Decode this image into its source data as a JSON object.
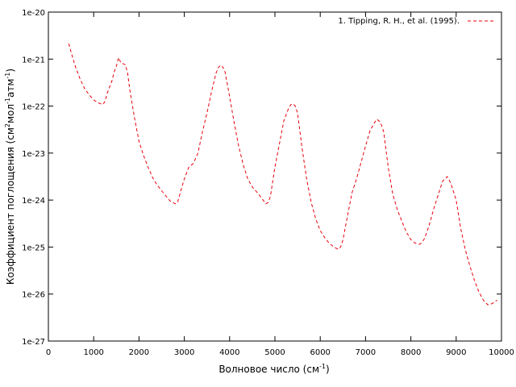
{
  "chart_data": {
    "type": "line",
    "xlabel": "Волновое число (см",
    "xlabel_sup": "-1",
    "xlabel_end": ")",
    "ylabel_parts": [
      "Коэффициент поглощения (см",
      "2",
      "мол",
      "-1",
      "атм",
      "-1",
      ")"
    ],
    "xlim": [
      0,
      10000
    ],
    "ylim_exp": [
      -27,
      -20
    ],
    "yscale": "log",
    "grid": false,
    "legend_position": "top-right",
    "x_ticks": [
      0,
      1000,
      2000,
      3000,
      4000,
      5000,
      6000,
      7000,
      8000,
      9000,
      10000
    ],
    "x_tick_labels": [
      "0",
      "1000",
      "2000",
      "3000",
      "4000",
      "5000",
      "6000",
      "7000",
      "8000",
      "9000",
      "10000"
    ],
    "y_ticks_exp": [
      -20,
      -21,
      -22,
      -23,
      -24,
      -25,
      -26,
      -27
    ],
    "y_tick_labels": [
      "1e-20",
      "1e-21",
      "1e-22",
      "1e-23",
      "1e-24",
      "1e-25",
      "1e-26",
      "1e-27"
    ],
    "series": [
      {
        "name": "1. Tipping, R. H., et al. (1995).",
        "color": "#e8000b",
        "dash": "dashed",
        "x": [
          450,
          500,
          600,
          700,
          800,
          900,
          1000,
          1100,
          1200,
          1250,
          1300,
          1400,
          1450,
          1500,
          1550,
          1600,
          1650,
          1700,
          1750,
          1800,
          1900,
          2000,
          2100,
          2200,
          2300,
          2400,
          2500,
          2600,
          2700,
          2800,
          2850,
          2900,
          3000,
          3100,
          3200,
          3300,
          3400,
          3500,
          3600,
          3700,
          3750,
          3800,
          3850,
          3900,
          4000,
          4100,
          4200,
          4300,
          4400,
          4500,
          4600,
          4700,
          4800,
          4850,
          4900,
          5000,
          5100,
          5200,
          5300,
          5350,
          5400,
          5450,
          5500,
          5600,
          5700,
          5800,
          5900,
          6000,
          6100,
          6200,
          6300,
          6400,
          6450,
          6500,
          6600,
          6700,
          6800,
          6900,
          7000,
          7100,
          7200,
          7250,
          7300,
          7350,
          7400,
          7500,
          7600,
          7700,
          7800,
          7900,
          8000,
          8100,
          8200,
          8250,
          8300,
          8400,
          8500,
          8600,
          8700,
          8800,
          8850,
          8900,
          9000,
          9100,
          9200,
          9300,
          9400,
          9500,
          9600,
          9700,
          9750,
          9800,
          9900
        ],
        "y_exp": [
          -20.67,
          -20.85,
          -21.17,
          -21.42,
          -21.63,
          -21.76,
          -21.87,
          -21.93,
          -21.97,
          -21.9,
          -21.72,
          -21.47,
          -21.28,
          -21.15,
          -20.97,
          -21.08,
          -21.1,
          -21.12,
          -21.3,
          -21.68,
          -22.25,
          -22.75,
          -23.05,
          -23.3,
          -23.52,
          -23.68,
          -23.8,
          -23.92,
          -24.03,
          -24.08,
          -24.05,
          -23.88,
          -23.55,
          -23.3,
          -23.22,
          -23.0,
          -22.55,
          -22.15,
          -21.7,
          -21.3,
          -21.18,
          -21.13,
          -21.17,
          -21.28,
          -21.8,
          -22.35,
          -22.85,
          -23.25,
          -23.55,
          -23.72,
          -23.83,
          -23.95,
          -24.08,
          -24.05,
          -23.92,
          -23.3,
          -22.8,
          -22.3,
          -22.05,
          -21.97,
          -21.95,
          -22.0,
          -22.15,
          -22.9,
          -23.55,
          -24.05,
          -24.4,
          -24.65,
          -24.8,
          -24.92,
          -25.0,
          -25.05,
          -25.0,
          -24.85,
          -24.35,
          -23.85,
          -23.55,
          -23.2,
          -22.85,
          -22.52,
          -22.35,
          -22.28,
          -22.32,
          -22.4,
          -22.55,
          -23.3,
          -23.87,
          -24.2,
          -24.45,
          -24.68,
          -24.84,
          -24.92,
          -24.94,
          -24.9,
          -24.82,
          -24.55,
          -24.2,
          -23.9,
          -23.6,
          -23.5,
          -23.58,
          -23.7,
          -24.0,
          -24.6,
          -25.05,
          -25.4,
          -25.7,
          -25.95,
          -26.13,
          -26.23,
          -26.22,
          -26.2,
          -26.13
        ]
      }
    ]
  }
}
